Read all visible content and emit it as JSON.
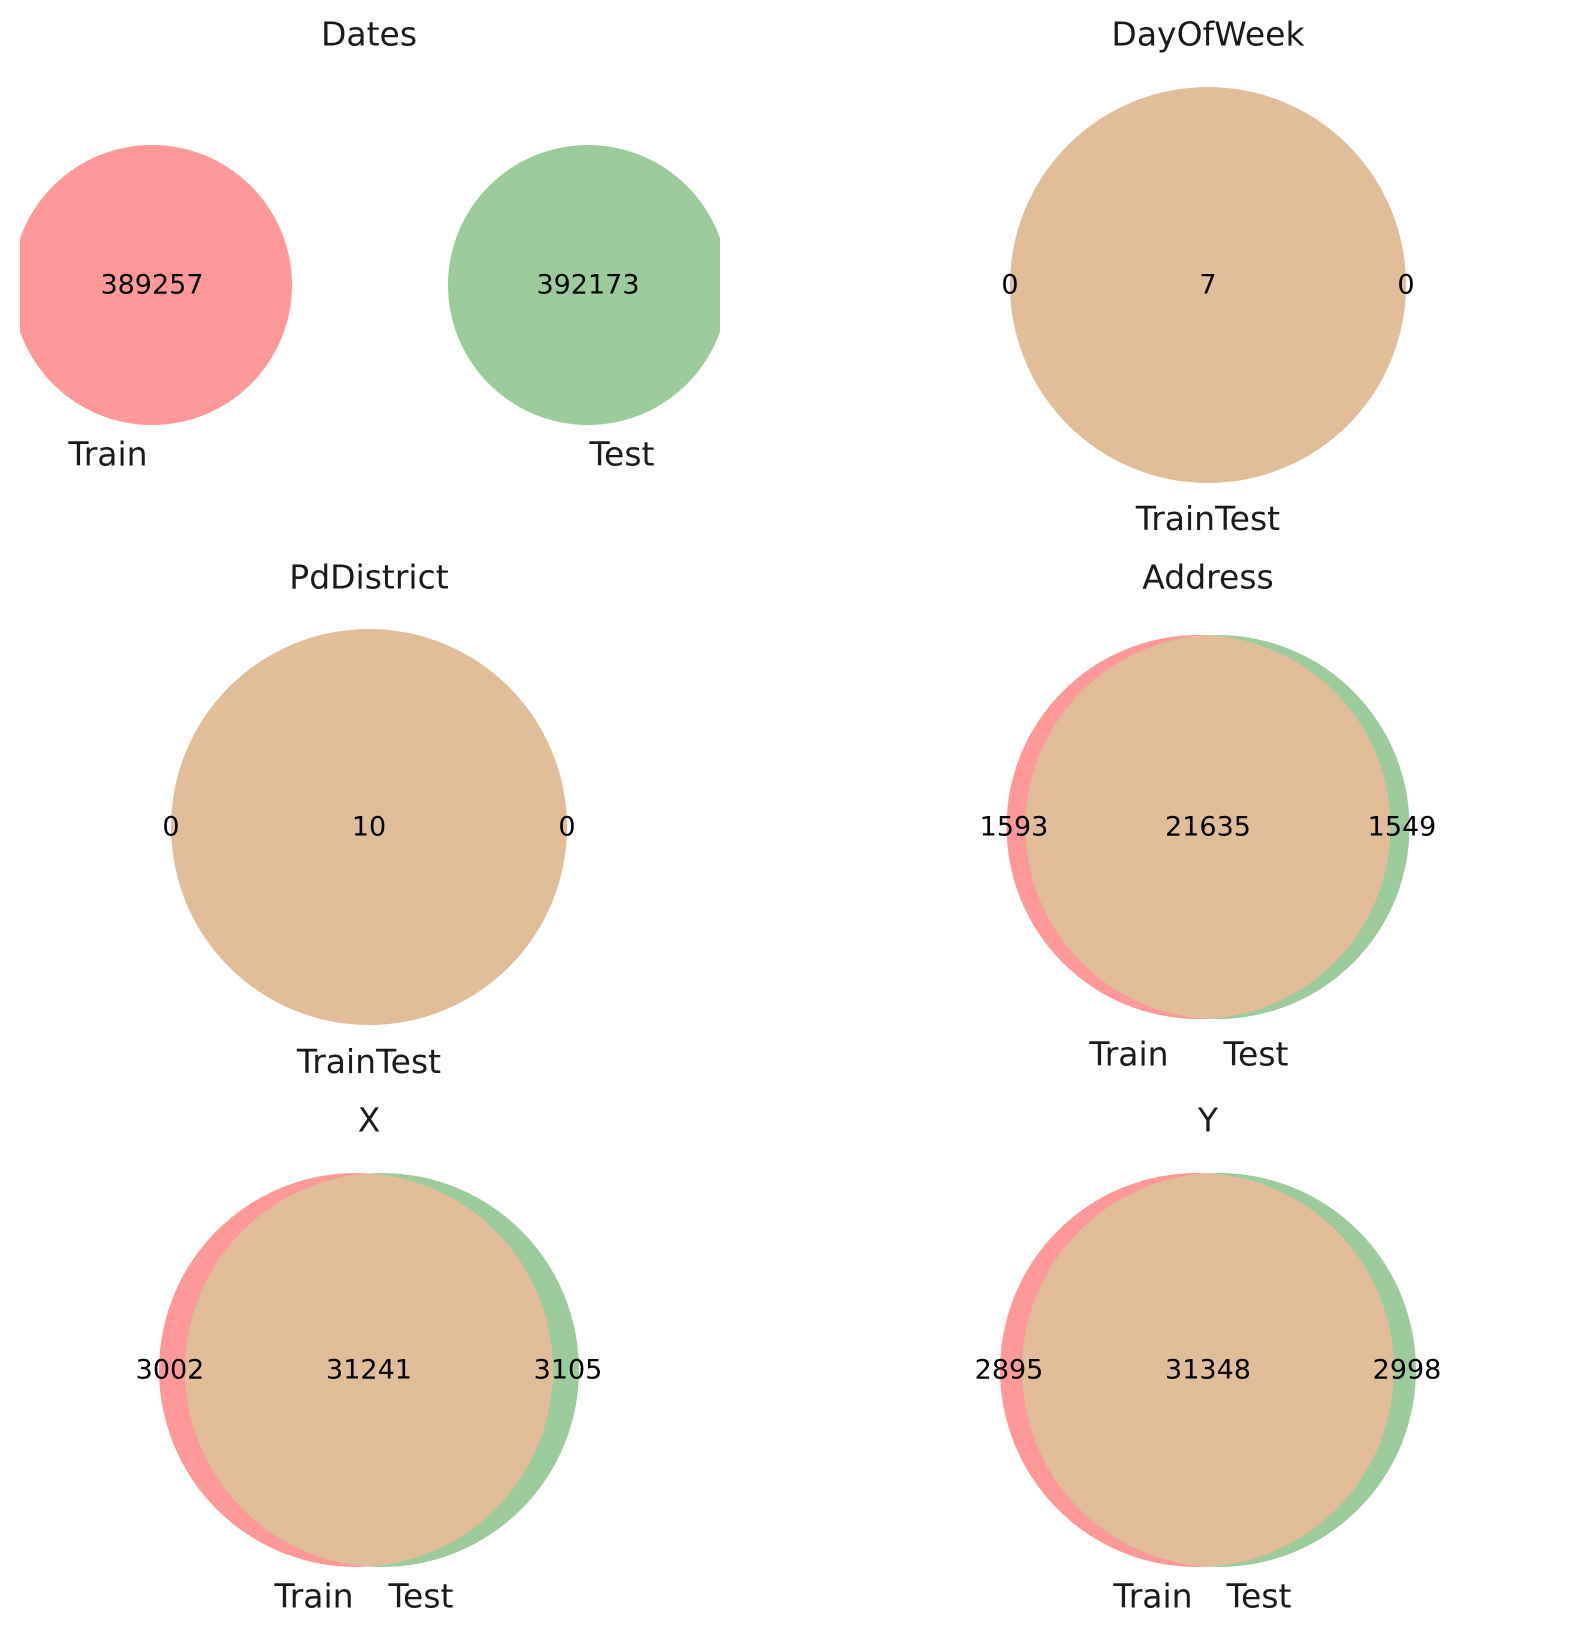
{
  "colors": {
    "train": "#ff9999",
    "test": "#9ccc9c",
    "overlap": "#e1bd99"
  },
  "chart_data": [
    {
      "type": "venn2",
      "title": "Dates",
      "set_labels": [
        "Train",
        "Test"
      ],
      "only_train": 389257,
      "only_test": 392173,
      "both": null
    },
    {
      "type": "venn2",
      "title": "DayOfWeek",
      "set_labels": [
        "Train",
        "Test"
      ],
      "only_train": 0,
      "only_test": 0,
      "both": 7
    },
    {
      "type": "venn2",
      "title": "PdDistrict",
      "set_labels": [
        "Train",
        "Test"
      ],
      "only_train": 0,
      "only_test": 0,
      "both": 10
    },
    {
      "type": "venn2",
      "title": "Address",
      "set_labels": [
        "Train",
        "Test"
      ],
      "only_train": 1593,
      "only_test": 1549,
      "both": 21635
    },
    {
      "type": "venn2",
      "title": "X",
      "set_labels": [
        "Train",
        "Test"
      ],
      "only_train": 3002,
      "only_test": 3105,
      "both": 31241
    },
    {
      "type": "venn2",
      "title": "Y",
      "set_labels": [
        "Train",
        "Test"
      ],
      "only_train": 2895,
      "only_test": 2998,
      "both": 31348
    }
  ]
}
